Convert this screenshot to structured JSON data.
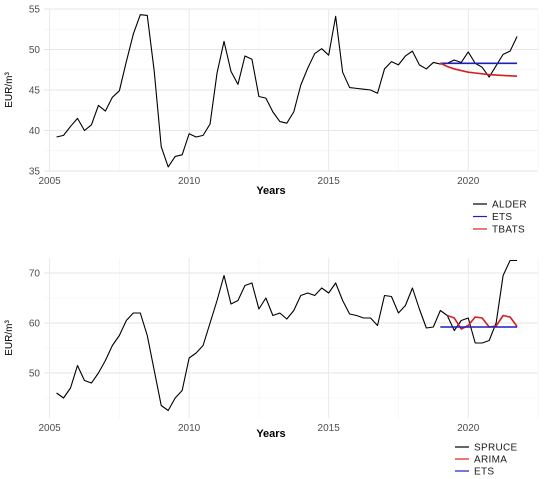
{
  "chart_data": [
    {
      "type": "line",
      "xlabel": "Years",
      "ylabel": "EUR/m³",
      "xlim": [
        2004.8,
        2022.5
      ],
      "ylim": [
        35,
        55
      ],
      "xticks": [
        2005,
        2010,
        2015,
        2020
      ],
      "yticks": [
        35,
        40,
        45,
        50,
        55
      ],
      "grid": true,
      "legend_position": "bottom-right",
      "series": [
        {
          "name": "ALDER",
          "color": "#000000",
          "x": [
            2005.25,
            2005.5,
            2005.75,
            2006.0,
            2006.25,
            2006.5,
            2006.75,
            2007.0,
            2007.25,
            2007.5,
            2007.75,
            2008.0,
            2008.25,
            2008.5,
            2008.75,
            2009.0,
            2009.25,
            2009.5,
            2009.75,
            2010.0,
            2010.25,
            2010.5,
            2010.75,
            2011.0,
            2011.25,
            2011.5,
            2011.75,
            2012.0,
            2012.25,
            2012.5,
            2012.75,
            2013.0,
            2013.25,
            2013.5,
            2013.75,
            2014.0,
            2014.25,
            2014.5,
            2014.75,
            2015.0,
            2015.25,
            2015.5,
            2015.75,
            2016.0,
            2016.25,
            2016.5,
            2016.75,
            2017.0,
            2017.25,
            2017.5,
            2017.75,
            2018.0,
            2018.25,
            2018.5,
            2018.75,
            2019.0,
            2019.25,
            2019.5,
            2019.75,
            2020.0,
            2020.25,
            2020.5,
            2020.75,
            2021.0,
            2021.25,
            2021.5,
            2021.75
          ],
          "values": [
            39.2,
            39.4,
            40.5,
            41.5,
            40.0,
            40.7,
            43.1,
            42.4,
            44.1,
            44.9,
            48.5,
            51.9,
            54.3,
            54.2,
            47.3,
            38.0,
            35.5,
            36.8,
            37.0,
            39.6,
            39.2,
            39.4,
            40.8,
            47.1,
            51.0,
            47.3,
            45.7,
            49.2,
            48.8,
            44.2,
            44.0,
            42.3,
            41.1,
            40.9,
            42.3,
            45.6,
            47.7,
            49.5,
            50.1,
            49.3,
            54.1,
            47.2,
            45.3,
            45.2,
            45.1,
            45.0,
            44.6,
            47.6,
            48.5,
            48.1,
            49.2,
            49.8,
            48.1,
            47.6,
            48.4,
            48.2,
            48.3,
            48.7,
            48.4,
            49.7,
            48.3,
            47.8,
            46.6,
            48.0,
            49.4,
            49.8,
            51.6
          ]
        },
        {
          "name": "ETS",
          "color": "#1f1fbf",
          "x": [
            2019.0,
            2021.75
          ],
          "values": [
            48.3,
            48.3
          ]
        },
        {
          "name": "TBATS",
          "color": "#d61f1f",
          "x": [
            2019.0,
            2019.25,
            2019.5,
            2019.75,
            2020.0,
            2020.25,
            2020.5,
            2020.75,
            2021.0,
            2021.25,
            2021.5,
            2021.75
          ],
          "values": [
            48.3,
            47.9,
            47.6,
            47.4,
            47.2,
            47.1,
            47.0,
            46.9,
            46.85,
            46.8,
            46.75,
            46.7
          ]
        }
      ],
      "legend": [
        "ALDER",
        "ETS",
        "TBATS"
      ]
    },
    {
      "type": "line",
      "xlabel": "Years",
      "ylabel": "EUR/m³",
      "xlim": [
        2004.8,
        2022.5
      ],
      "ylim": [
        41,
        73
      ],
      "xticks": [
        2005,
        2010,
        2015,
        2020
      ],
      "yticks": [
        50,
        60,
        70
      ],
      "grid": true,
      "legend_position": "bottom-right",
      "series": [
        {
          "name": "SPRUCE",
          "color": "#000000",
          "x": [
            2005.25,
            2005.5,
            2005.75,
            2006.0,
            2006.25,
            2006.5,
            2006.75,
            2007.0,
            2007.25,
            2007.5,
            2007.75,
            2008.0,
            2008.25,
            2008.5,
            2008.75,
            2009.0,
            2009.25,
            2009.5,
            2009.75,
            2010.0,
            2010.25,
            2010.5,
            2010.75,
            2011.0,
            2011.25,
            2011.5,
            2011.75,
            2012.0,
            2012.25,
            2012.5,
            2012.75,
            2013.0,
            2013.25,
            2013.5,
            2013.75,
            2014.0,
            2014.25,
            2014.5,
            2014.75,
            2015.0,
            2015.25,
            2015.5,
            2015.75,
            2016.0,
            2016.25,
            2016.5,
            2016.75,
            2017.0,
            2017.25,
            2017.5,
            2017.75,
            2018.0,
            2018.25,
            2018.5,
            2018.75,
            2019.0,
            2019.25,
            2019.5,
            2019.75,
            2020.0,
            2020.25,
            2020.5,
            2020.75,
            2021.0,
            2021.25,
            2021.5,
            2021.75
          ],
          "values": [
            46.0,
            45.0,
            47.0,
            51.5,
            48.5,
            48.0,
            50.0,
            52.5,
            55.5,
            57.5,
            60.5,
            62.0,
            62.0,
            57.5,
            50.5,
            43.5,
            42.5,
            45.0,
            46.5,
            53.0,
            54.0,
            55.5,
            60.0,
            64.5,
            69.5,
            63.8,
            64.5,
            67.5,
            68.0,
            62.8,
            65.0,
            61.5,
            62.0,
            60.8,
            62.5,
            65.5,
            66.0,
            65.5,
            67.0,
            66.0,
            68.0,
            64.5,
            61.8,
            61.5,
            61.0,
            61.0,
            59.5,
            65.5,
            65.3,
            62.0,
            63.5,
            67.0,
            62.8,
            59.0,
            59.2,
            62.5,
            61.5,
            58.5,
            60.5,
            61.0,
            56.0,
            56.0,
            56.5,
            60.0,
            69.5,
            72.5,
            72.5
          ]
        },
        {
          "name": "ARIMA",
          "color": "#d61f1f",
          "x": [
            2019.25,
            2019.5,
            2019.75,
            2020.0,
            2020.25,
            2020.5,
            2020.75,
            2021.0,
            2021.25,
            2021.5,
            2021.75
          ],
          "values": [
            61.5,
            61.0,
            58.8,
            59.5,
            61.2,
            61.0,
            59.2,
            59.4,
            61.5,
            61.2,
            59.3
          ]
        },
        {
          "name": "ETS",
          "color": "#1f1fbf",
          "x": [
            2019.0,
            2021.75
          ],
          "values": [
            59.2,
            59.2
          ]
        }
      ],
      "legend": [
        "SPRUCE",
        "ARIMA",
        "ETS"
      ]
    }
  ]
}
